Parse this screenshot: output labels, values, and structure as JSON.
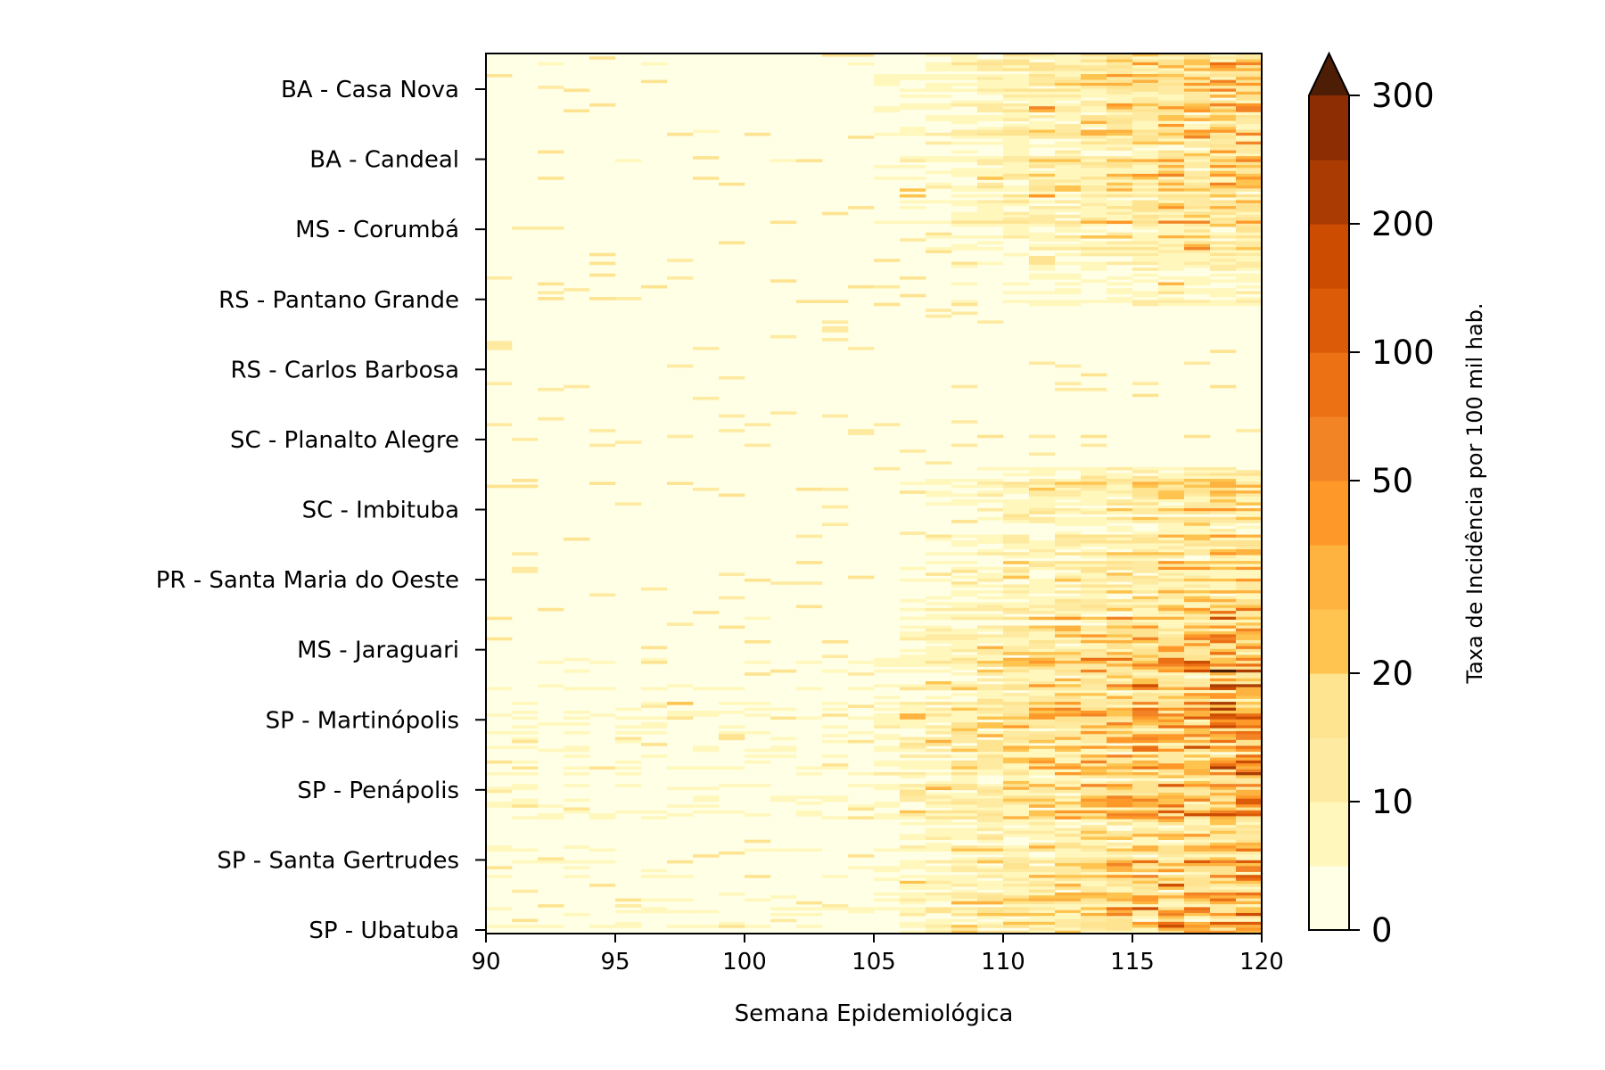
{
  "chart_data": {
    "type": "heatmap",
    "xlabel": "Semana Epidemiológica",
    "x_range": [
      90,
      120
    ],
    "x_ticks": [
      90,
      95,
      100,
      105,
      110,
      115,
      120
    ],
    "y_tick_labels": [
      "BA - Casa Nova",
      "BA - Candeal",
      "MS - Corumbá",
      "RS - Pantano Grande",
      "RS - Carlos Barbosa",
      "SC - Planalto Alegre",
      "SC - Imbituba",
      "PR - Santa Maria do Oeste",
      "MS - Jaraguari",
      "SP - Martinópolis",
      "SP - Penápolis",
      "SP - Santa Gertrudes",
      "SP - Ubatuba"
    ],
    "colorbar": {
      "label": "Taxa de Incidência por 100 mil hab.",
      "tick_labels": [
        "0",
        "10",
        "20",
        "50",
        "100",
        "200",
        "300"
      ],
      "levels": [
        0,
        5,
        10,
        15,
        20,
        30,
        40,
        50,
        75,
        100,
        150,
        200,
        250,
        300
      ],
      "extend": "max",
      "colors": [
        "#ffffe5",
        "#fff7bc",
        "#feeaa0",
        "#fee391",
        "#fec44f",
        "#feb23f",
        "#fe9929",
        "#f38425",
        "#ec7014",
        "#dc5b09",
        "#cc4c02",
        "#a93b03",
        "#8c2d04",
        "#662506",
        "#4d1d05"
      ]
    },
    "grid": false
  }
}
